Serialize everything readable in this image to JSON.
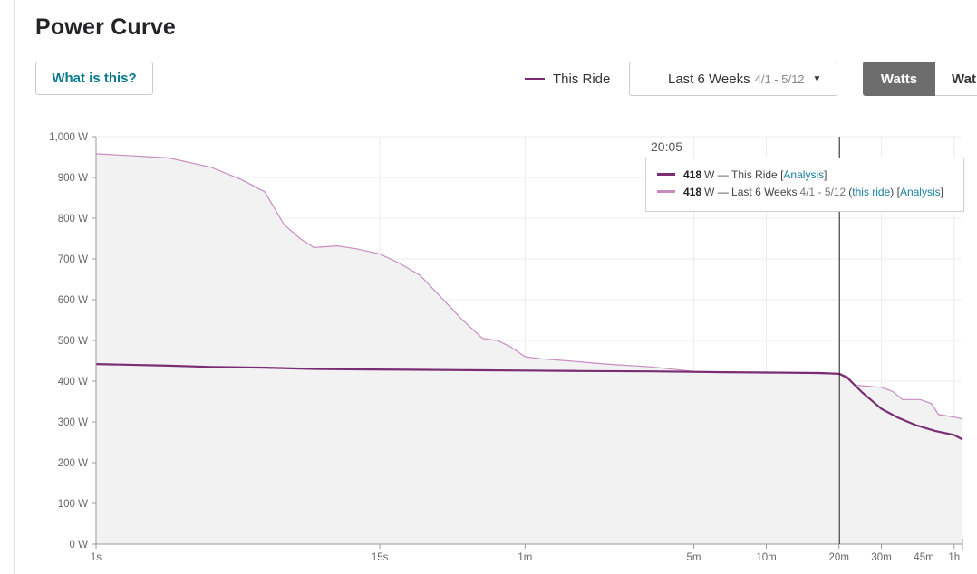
{
  "header": {
    "title": "Power Curve"
  },
  "what_button": {
    "label": "What is this?"
  },
  "legend": {
    "this_ride": "This Ride"
  },
  "comparison_dropdown": {
    "label": "Last 6 Weeks",
    "dates": "4/1 - 5/12",
    "caret": "▼"
  },
  "unit_toggle": {
    "active": "Watts",
    "inactive": "Wat"
  },
  "colors": {
    "this_ride": "#7b2d73",
    "comparison": "#c98cc0",
    "fill": "#f2f2f3",
    "cursor": "#222222"
  },
  "tooltip": {
    "time": "20:05",
    "ride": {
      "value": "418",
      "unit": "W",
      "sep": "—",
      "label": "This Ride",
      "link_open": "[",
      "link": "Analysis",
      "link_close": "]"
    },
    "comparison": {
      "value": "418",
      "unit": "W",
      "sep": "—",
      "label": "Last 6 Weeks",
      "dates": "4/1 - 5/12",
      "paren_open": "(",
      "this_ride_link": "this ride",
      "paren_close": ")",
      "link_open": "[",
      "link": "Analysis",
      "link_close": "]"
    }
  },
  "chart_data": {
    "type": "line",
    "x_scale": "log",
    "x_unit": "seconds",
    "xlim": [
      1,
      3900
    ],
    "ylim": [
      0,
      1000
    ],
    "grid": true,
    "y_ticks": [
      {
        "value": 0,
        "label": "0 W"
      },
      {
        "value": 100,
        "label": "100 W"
      },
      {
        "value": 200,
        "label": "200 W"
      },
      {
        "value": 300,
        "label": "300 W"
      },
      {
        "value": 400,
        "label": "400 W"
      },
      {
        "value": 500,
        "label": "500 W"
      },
      {
        "value": 600,
        "label": "600 W"
      },
      {
        "value": 700,
        "label": "700 W"
      },
      {
        "value": 800,
        "label": "800 W"
      },
      {
        "value": 900,
        "label": "900 W"
      },
      {
        "value": 1000,
        "label": "1,000 W"
      }
    ],
    "x_ticks": [
      {
        "value": 1,
        "label": "1s"
      },
      {
        "value": 15,
        "label": "15s"
      },
      {
        "value": 60,
        "label": "1m"
      },
      {
        "value": 300,
        "label": "5m"
      },
      {
        "value": 600,
        "label": "10m"
      },
      {
        "value": 1200,
        "label": "20m"
      },
      {
        "value": 1800,
        "label": "30m"
      },
      {
        "value": 2700,
        "label": "45m"
      },
      {
        "value": 3600,
        "label": "1h"
      }
    ],
    "cursor_x": 1205,
    "series": [
      {
        "name": "This Ride",
        "x": [
          1,
          2,
          3,
          5,
          8,
          12,
          20,
          35,
          60,
          100,
          200,
          400,
          700,
          1000,
          1205,
          1300,
          1500,
          1800,
          2100,
          2500,
          3000,
          3600,
          3900
        ],
        "y": [
          442,
          438,
          435,
          433,
          430,
          429,
          428,
          427,
          426,
          425,
          424,
          422,
          421,
          420,
          418,
          408,
          372,
          332,
          311,
          292,
          278,
          268,
          257
        ]
      },
      {
        "name": "Last 6 Weeks",
        "x": [
          1,
          2,
          3,
          4,
          5,
          6,
          7,
          8,
          10,
          12,
          15,
          18,
          22,
          27,
          33,
          40,
          46,
          52,
          60,
          70,
          90,
          130,
          200,
          300,
          500,
          800,
          1100,
          1205,
          1300,
          1400,
          1800,
          2000,
          2200,
          2600,
          2900,
          3100,
          3600,
          3900
        ],
        "y": [
          958,
          948,
          925,
          895,
          865,
          785,
          750,
          728,
          732,
          725,
          712,
          690,
          660,
          605,
          550,
          505,
          500,
          485,
          460,
          455,
          450,
          442,
          435,
          424,
          422,
          420,
          418,
          418,
          412,
          390,
          385,
          375,
          355,
          355,
          345,
          318,
          312,
          307
        ]
      }
    ]
  }
}
